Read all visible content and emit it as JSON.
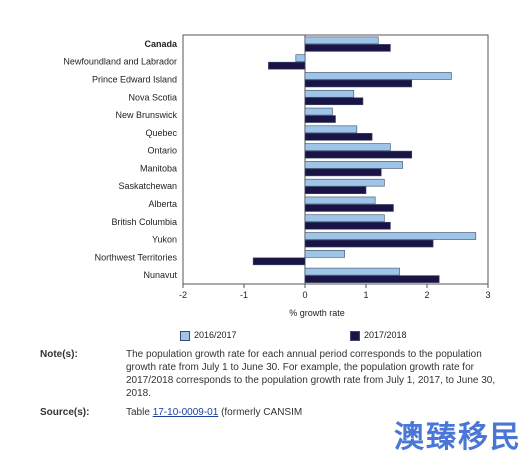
{
  "chart_data": {
    "type": "bar",
    "orientation": "horizontal",
    "categories": [
      "Canada",
      "Newfoundland and Labrador",
      "Prince Edward Island",
      "Nova Scotia",
      "New Brunswick",
      "Quebec",
      "Ontario",
      "Manitoba",
      "Saskatchewan",
      "Alberta",
      "British Columbia",
      "Yukon",
      "Northwest Territories",
      "Nunavut"
    ],
    "bold_categories": [
      "Canada"
    ],
    "series": [
      {
        "name": "2016/2017",
        "color": "#9ec5e8",
        "values": [
          1.2,
          -0.15,
          2.4,
          0.8,
          0.45,
          0.85,
          1.4,
          1.6,
          1.3,
          1.15,
          1.3,
          2.8,
          0.65,
          1.55
        ]
      },
      {
        "name": "2017/2018",
        "color": "#1a1446",
        "values": [
          1.4,
          -0.6,
          1.75,
          0.95,
          0.5,
          1.1,
          1.75,
          1.25,
          1.0,
          1.45,
          1.4,
          2.1,
          -0.85,
          2.2
        ]
      }
    ],
    "xlabel": "% growth rate",
    "ylabel": "",
    "title": "",
    "xlim": [
      -2,
      3
    ],
    "xticks": [
      -2,
      -1,
      0,
      1,
      2,
      3
    ],
    "grid": false,
    "legend_position": "bottom"
  },
  "notes": {
    "note_label": "Note(s):",
    "note_text": "The population growth rate for each annual period corresponds to the population growth rate from July 1 to June 30. For example, the population growth rate for 2017/2018 corresponds to the population growth rate from July 1, 2017, to June 30, 2018.",
    "source_label": "Source(s):",
    "source_prefix": "Table ",
    "source_link": "17-10-0009-01",
    "source_suffix": " (formerly CANSIM"
  },
  "watermark": "澳臻移民"
}
